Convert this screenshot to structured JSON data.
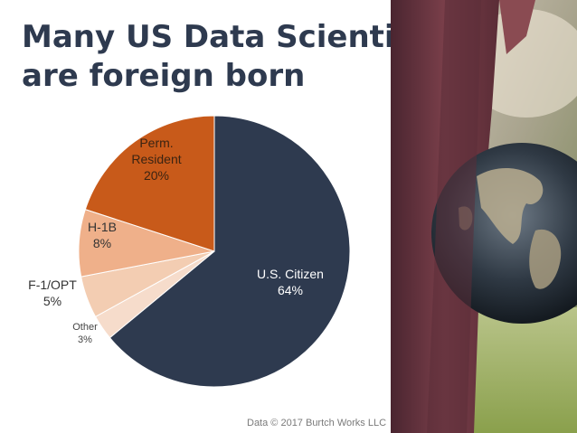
{
  "title_lines": [
    "Many US Data Scientists",
    "are foreign born"
  ],
  "source": "Data © 2017 Burtch Works LLC",
  "colors": {
    "us_citizen": "#2e3a4f",
    "other": "#f6dccb",
    "f1_opt": "#f3cdb2",
    "h1b": "#efb08a",
    "perm_resident": "#c85a1a"
  },
  "chart_data": {
    "type": "pie",
    "slices": [
      {
        "label_lines": [
          "U.S. Citizen",
          "64%"
        ],
        "value": 64,
        "color": "#2e3a4f"
      },
      {
        "label_lines": [
          "Other",
          "3%"
        ],
        "value": 3,
        "color": "#f6dccb"
      },
      {
        "label_lines": [
          "F-1/OPT",
          "5%"
        ],
        "value": 5,
        "color": "#f3cdb2"
      },
      {
        "label_lines": [
          "H-1B",
          "8%"
        ],
        "value": 8,
        "color": "#efb08a"
      },
      {
        "label_lines": [
          "Perm.",
          "Resident",
          "20%"
        ],
        "value": 20,
        "color": "#c85a1a"
      }
    ],
    "start": "12 o'clock",
    "direction": "clockwise"
  }
}
